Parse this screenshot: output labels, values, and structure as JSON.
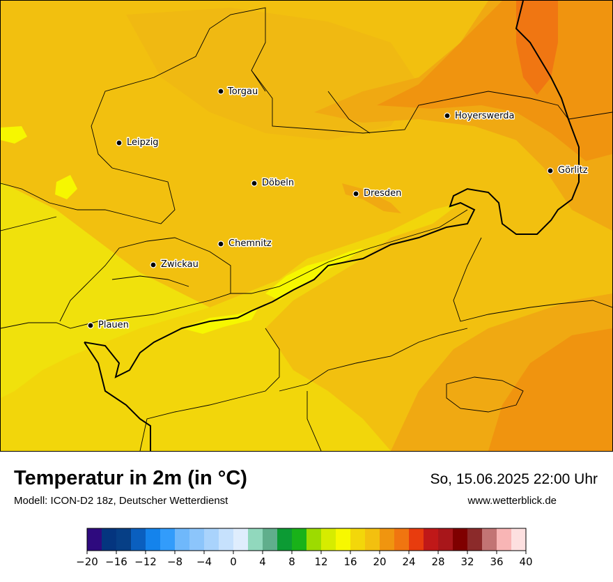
{
  "title": "Temperatur in 2m (in °C)",
  "model": "Modell: ICON-D2 18z, Deutscher Wetterdienst",
  "datetime": "So, 15.06.2025 22:00 Uhr",
  "website": "www.wetterblick.de",
  "cities": [
    {
      "name": "Torgau"
    },
    {
      "name": "Hoyerswerda"
    },
    {
      "name": "Leipzig"
    },
    {
      "name": "Görlitz"
    },
    {
      "name": "Döbeln"
    },
    {
      "name": "Dresden"
    },
    {
      "name": "Chemnitz"
    },
    {
      "name": "Zwickau"
    },
    {
      "name": "Plauen"
    }
  ],
  "legend": {
    "unit": "°C",
    "min": -20,
    "max": 40,
    "step": 2,
    "ticks": [
      "−20",
      "−16",
      "−12",
      "−8",
      "−4",
      "0",
      "4",
      "8",
      "12",
      "16",
      "20",
      "24",
      "28",
      "32",
      "36",
      "40"
    ],
    "colors": [
      "#2e0a7e",
      "#04357f",
      "#063f86",
      "#0a5fbf",
      "#1483ec",
      "#329cfb",
      "#6fb8fb",
      "#8cc5fb",
      "#a9d3fc",
      "#c6e1fd",
      "#dfedfd",
      "#91d8bd",
      "#60ae8c",
      "#0c9b34",
      "#19b219",
      "#9ddb00",
      "#d6ec00",
      "#f7f800",
      "#f3d70a",
      "#f3c00f",
      "#f0950f",
      "#f07510",
      "#e83c0e",
      "#c01818",
      "#a8161a",
      "#7f0000",
      "#8b2a2a",
      "#c27474",
      "#f8b5b5",
      "#fde0e0"
    ]
  },
  "map_colors": {
    "temp_15": "#f0e10c",
    "temp_16": "#f6f700",
    "temp_17": "#f2d60b",
    "temp_19": "#f2c00f",
    "temp_21": "#f0a912",
    "temp_22": "#f0940f",
    "temp_23": "#f07612",
    "border": "#000000"
  }
}
